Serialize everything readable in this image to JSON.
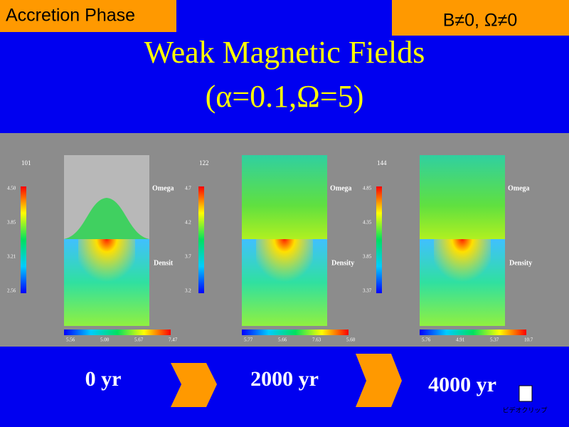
{
  "header": {
    "phase": "Accretion Phase",
    "condition": "B≠0, Ω≠0"
  },
  "title": {
    "line1": "Weak Magnetic Fields",
    "line2": "(α=0.1,Ω=5)"
  },
  "panels": [
    {
      "step": "101",
      "omega_label": "Omega",
      "density_label": "Densit",
      "vbar_labels": [
        "4.50",
        "3.85",
        "3.21",
        "2.56"
      ],
      "hbar_labels": [
        "5.56",
        "5.00",
        "5.67",
        "7.47"
      ],
      "time": "0 yr"
    },
    {
      "step": "122",
      "omega_label": "Omega",
      "density_label": "Density",
      "vbar_labels": [
        "4.7",
        "4.2",
        "3.7",
        "3.2"
      ],
      "hbar_labels": [
        "5.77",
        "5.66",
        "7.63",
        "5.60"
      ],
      "time": "2000 yr"
    },
    {
      "step": "144",
      "omega_label": "Omega",
      "density_label": "Density",
      "vbar_labels": [
        "4.85",
        "4.35",
        "3.85",
        "3.37"
      ],
      "hbar_labels": [
        "5.76",
        "4.91",
        "5.37",
        "10.7"
      ],
      "time": "4000 yr"
    }
  ],
  "icon_label": "ビデオクリップ"
}
